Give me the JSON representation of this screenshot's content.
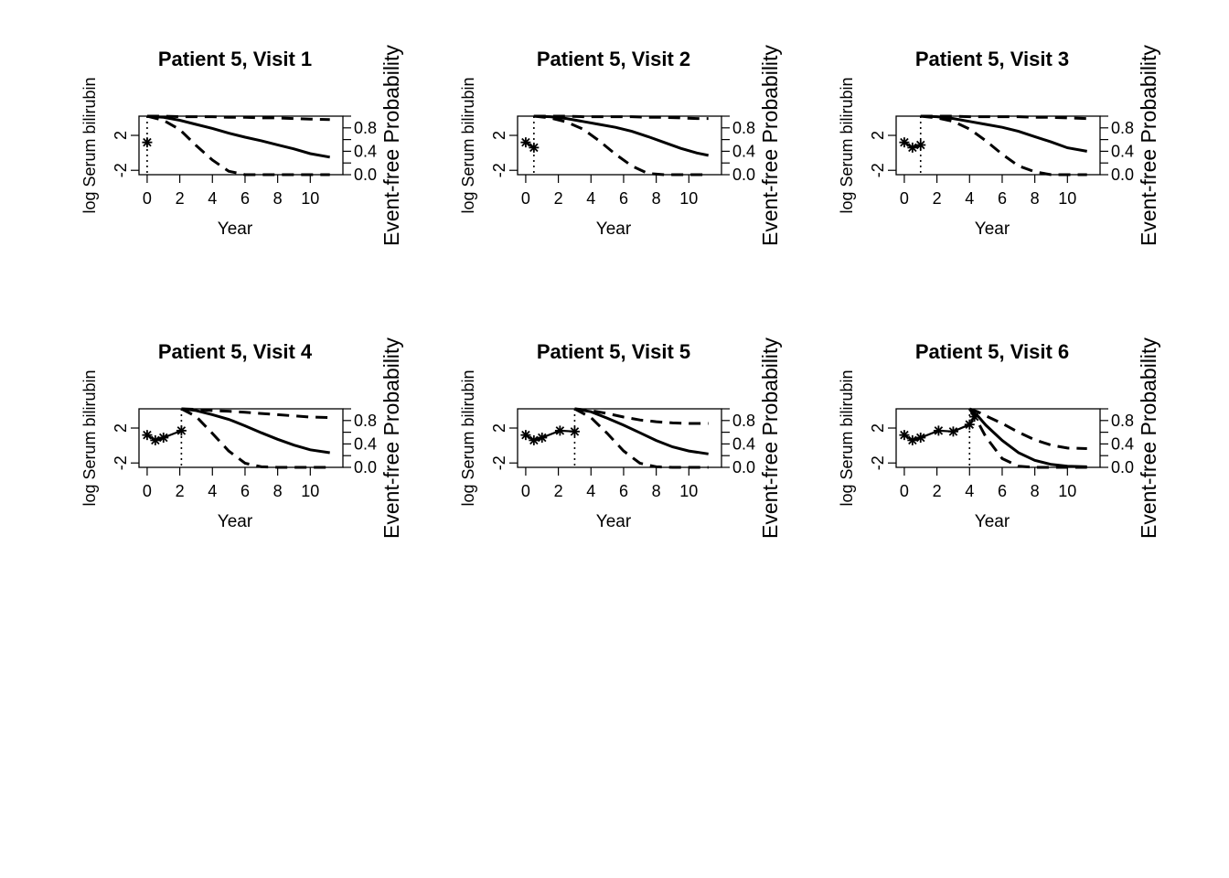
{
  "figure": {
    "background": "#ffffff",
    "foreground": "#000000"
  },
  "chart_data": [
    {
      "type": "line",
      "title": "Patient 5, Visit 1",
      "xlabel": "Year",
      "ylabel": "log Serum bilirubin",
      "y2label": "Event-free Probability",
      "xticks": [
        "0",
        "2",
        "4",
        "6",
        "8",
        "10"
      ],
      "yticks": [
        "-2",
        "2"
      ],
      "y2ticks": [
        "0.0",
        "0.4",
        "0.8"
      ],
      "xlim": [
        -0.5,
        12
      ],
      "ylim": [
        -2.5,
        4.2
      ],
      "y2lim": [
        0,
        1
      ],
      "landmark_time": 0,
      "observed": {
        "x": [
          0.0
        ],
        "y": [
          1.2
        ]
      },
      "survival": {
        "x": [
          0,
          1,
          2,
          3,
          4,
          5,
          6,
          7,
          8,
          9,
          10,
          11.2
        ],
        "mean": [
          1.0,
          0.98,
          0.93,
          0.86,
          0.79,
          0.71,
          0.64,
          0.58,
          0.51,
          0.44,
          0.36,
          0.3
        ],
        "upper": [
          1.0,
          1.0,
          0.99,
          0.99,
          0.99,
          0.98,
          0.98,
          0.97,
          0.97,
          0.96,
          0.95,
          0.94
        ],
        "lower": [
          1.0,
          0.93,
          0.77,
          0.5,
          0.25,
          0.06,
          0.0,
          0.0,
          0.0,
          0.0,
          0.0,
          0.0
        ]
      }
    },
    {
      "type": "line",
      "title": "Patient 5, Visit 2",
      "xlabel": "Year",
      "ylabel": "log Serum bilirubin",
      "y2label": "Event-free Probability",
      "xticks": [
        "0",
        "2",
        "4",
        "6",
        "8",
        "10"
      ],
      "yticks": [
        "-2",
        "2"
      ],
      "y2ticks": [
        "0.0",
        "0.4",
        "0.8"
      ],
      "xlim": [
        -0.5,
        12
      ],
      "ylim": [
        -2.5,
        4.2
      ],
      "y2lim": [
        0,
        1
      ],
      "landmark_time": 0.5,
      "observed": {
        "x": [
          0.0,
          0.5
        ],
        "y": [
          1.2,
          0.6
        ]
      },
      "survival": {
        "x": [
          0.5,
          1.5,
          2.5,
          3.5,
          4.5,
          5.5,
          6.5,
          7.5,
          8.5,
          9.5,
          10.5,
          11.2
        ],
        "mean": [
          1.0,
          0.99,
          0.96,
          0.91,
          0.86,
          0.81,
          0.74,
          0.65,
          0.55,
          0.45,
          0.37,
          0.33
        ],
        "upper": [
          1.0,
          1.0,
          1.0,
          0.99,
          0.99,
          0.99,
          0.99,
          0.98,
          0.98,
          0.97,
          0.96,
          0.96
        ],
        "lower": [
          1.0,
          0.97,
          0.9,
          0.78,
          0.58,
          0.35,
          0.15,
          0.02,
          0.0,
          0.0,
          0.0,
          0.0
        ]
      }
    },
    {
      "type": "line",
      "title": "Patient 5, Visit 3",
      "xlabel": "Year",
      "ylabel": "log Serum bilirubin",
      "y2label": "Event-free Probability",
      "xticks": [
        "0",
        "2",
        "4",
        "6",
        "8",
        "10"
      ],
      "yticks": [
        "-2",
        "2"
      ],
      "y2ticks": [
        "0.0",
        "0.4",
        "0.8"
      ],
      "xlim": [
        -0.5,
        12
      ],
      "ylim": [
        -2.5,
        4.2
      ],
      "y2lim": [
        0,
        1
      ],
      "landmark_time": 1.0,
      "observed": {
        "x": [
          0.0,
          0.5,
          1.0
        ],
        "y": [
          1.2,
          0.6,
          0.9
        ]
      },
      "survival": {
        "x": [
          1.0,
          2,
          3,
          4,
          5,
          6,
          7,
          8,
          9,
          10,
          11.2
        ],
        "mean": [
          1.0,
          0.99,
          0.96,
          0.91,
          0.86,
          0.81,
          0.74,
          0.65,
          0.56,
          0.46,
          0.4
        ],
        "upper": [
          1.0,
          1.0,
          1.0,
          0.99,
          0.99,
          0.99,
          0.99,
          0.98,
          0.98,
          0.97,
          0.96
        ],
        "lower": [
          1.0,
          0.97,
          0.91,
          0.78,
          0.58,
          0.35,
          0.15,
          0.05,
          0.0,
          0.0,
          0.0
        ]
      }
    },
    {
      "type": "line",
      "title": "Patient 5, Visit 4",
      "xlabel": "Year",
      "ylabel": "log Serum bilirubin",
      "y2label": "Event-free Probability",
      "xticks": [
        "0",
        "2",
        "4",
        "6",
        "8",
        "10"
      ],
      "yticks": [
        "-2",
        "2"
      ],
      "y2ticks": [
        "0.0",
        "0.4",
        "0.8"
      ],
      "xlim": [
        -0.5,
        12
      ],
      "ylim": [
        -2.5,
        4.2
      ],
      "y2lim": [
        0,
        1
      ],
      "landmark_time": 2.1,
      "observed": {
        "x": [
          0.0,
          0.5,
          1.0,
          2.1
        ],
        "y": [
          1.2,
          0.6,
          0.9,
          1.7
        ]
      },
      "survival": {
        "x": [
          2.1,
          3,
          4,
          5,
          6,
          7,
          8,
          9,
          10,
          11.2
        ],
        "mean": [
          1.0,
          0.97,
          0.9,
          0.82,
          0.71,
          0.59,
          0.48,
          0.38,
          0.3,
          0.25
        ],
        "upper": [
          1.0,
          0.99,
          0.97,
          0.96,
          0.94,
          0.92,
          0.9,
          0.88,
          0.86,
          0.85
        ],
        "lower": [
          1.0,
          0.87,
          0.58,
          0.28,
          0.07,
          0.01,
          0.0,
          0.0,
          0.0,
          0.0
        ]
      }
    },
    {
      "type": "line",
      "title": "Patient 5, Visit 5",
      "xlabel": "Year",
      "ylabel": "log Serum bilirubin",
      "y2label": "Event-free Probability",
      "xticks": [
        "0",
        "2",
        "4",
        "6",
        "8",
        "10"
      ],
      "yticks": [
        "-2",
        "2"
      ],
      "y2ticks": [
        "0.0",
        "0.4",
        "0.8"
      ],
      "xlim": [
        -0.5,
        12
      ],
      "ylim": [
        -2.5,
        4.2
      ],
      "y2lim": [
        0,
        1
      ],
      "landmark_time": 3.0,
      "observed": {
        "x": [
          0.0,
          0.5,
          1.0,
          2.1,
          3.0
        ],
        "y": [
          1.2,
          0.6,
          0.9,
          1.7,
          1.6
        ]
      },
      "survival": {
        "x": [
          3.0,
          4,
          5,
          6,
          7,
          8,
          9,
          10,
          11.2
        ],
        "mean": [
          1.0,
          0.95,
          0.84,
          0.72,
          0.59,
          0.46,
          0.35,
          0.28,
          0.23
        ],
        "upper": [
          1.0,
          0.97,
          0.92,
          0.86,
          0.81,
          0.78,
          0.76,
          0.75,
          0.75
        ],
        "lower": [
          1.0,
          0.85,
          0.58,
          0.28,
          0.07,
          0.01,
          0.0,
          0.0,
          0.0
        ]
      }
    },
    {
      "type": "line",
      "title": "Patient 5, Visit 6",
      "xlabel": "Year",
      "ylabel": "log Serum bilirubin",
      "y2label": "Event-free Probability",
      "xticks": [
        "0",
        "2",
        "4",
        "6",
        "8",
        "10"
      ],
      "yticks": [
        "-2",
        "2"
      ],
      "y2ticks": [
        "0.0",
        "0.4",
        "0.8"
      ],
      "xlim": [
        -0.5,
        12
      ],
      "ylim": [
        -2.5,
        4.2
      ],
      "y2lim": [
        0,
        1
      ],
      "landmark_time": 4.0,
      "observed": {
        "x": [
          0.0,
          0.5,
          1.0,
          2.1,
          3.0,
          4.0,
          4.3
        ],
        "y": [
          1.2,
          0.6,
          0.9,
          1.7,
          1.6,
          2.4,
          3.3
        ]
      },
      "survival": {
        "x": [
          4.0,
          4.5,
          5,
          6,
          7,
          8,
          9,
          10,
          11.2
        ],
        "mean": [
          1.0,
          0.88,
          0.72,
          0.46,
          0.25,
          0.12,
          0.05,
          0.02,
          0.01
        ],
        "upper": [
          1.0,
          0.95,
          0.88,
          0.75,
          0.6,
          0.47,
          0.38,
          0.33,
          0.32
        ],
        "lower": [
          1.0,
          0.78,
          0.52,
          0.15,
          0.02,
          0.0,
          0.0,
          0.0,
          0.0
        ]
      }
    }
  ]
}
